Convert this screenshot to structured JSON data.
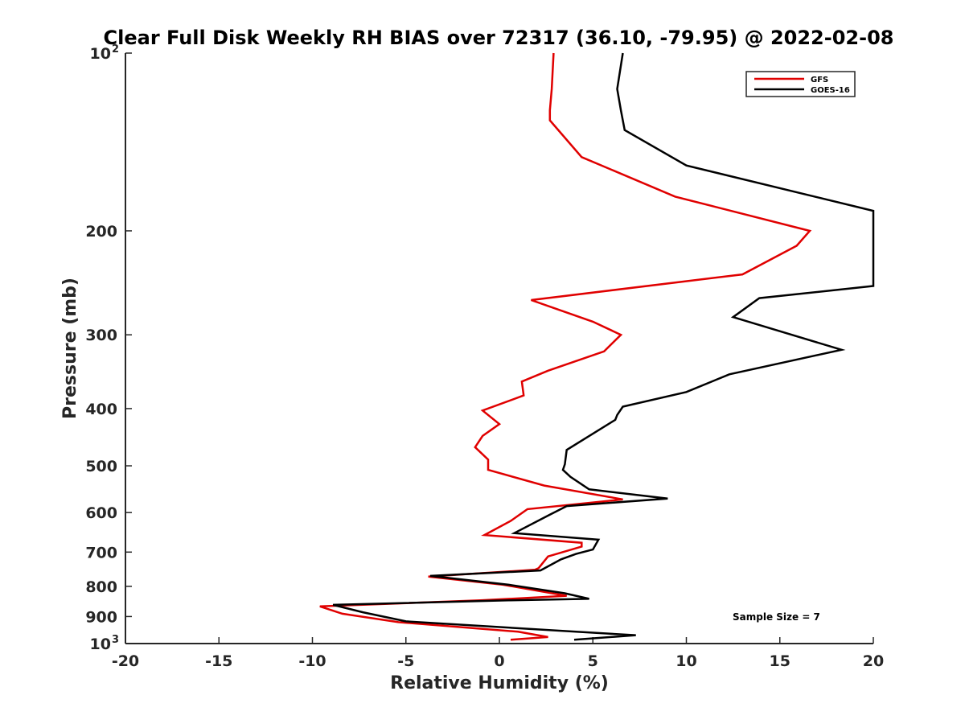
{
  "chart_data": {
    "type": "line",
    "title": "Clear Full Disk Weekly RH BIAS over 72317 (36.10, -79.95) @ 2022-02-08",
    "xlabel": "Relative Humidity (%)",
    "ylabel": "Pressure (mb)",
    "xlim": [
      -20,
      20
    ],
    "ylim": [
      100,
      1000
    ],
    "yscale": "log",
    "y_reversed": true,
    "x_ticks": [
      {
        "value": -20,
        "label": "-20"
      },
      {
        "value": -15,
        "label": "-15"
      },
      {
        "value": -10,
        "label": "-10"
      },
      {
        "value": -5,
        "label": "-5"
      },
      {
        "value": 0,
        "label": "0"
      },
      {
        "value": 5,
        "label": "5"
      },
      {
        "value": 10,
        "label": "10"
      },
      {
        "value": 15,
        "label": "15"
      },
      {
        "value": 20,
        "label": "20"
      }
    ],
    "y_ticks": [
      {
        "value": 100,
        "label": "10",
        "sup": "2"
      },
      {
        "value": 200,
        "label": "200"
      },
      {
        "value": 300,
        "label": "300"
      },
      {
        "value": 400,
        "label": "400"
      },
      {
        "value": 500,
        "label": "500"
      },
      {
        "value": 600,
        "label": "600"
      },
      {
        "value": 700,
        "label": "700"
      },
      {
        "value": 800,
        "label": "800"
      },
      {
        "value": 900,
        "label": "900"
      },
      {
        "value": 1000,
        "label": "10",
        "sup": "3"
      }
    ],
    "grid": false,
    "legend_position": "top-right",
    "annotation": "Sample Size = 7",
    "series": [
      {
        "name": "GFS",
        "color": "#e00000",
        "points": [
          [
            2.9,
            100
          ],
          [
            2.8,
            115
          ],
          [
            2.7,
            125
          ],
          [
            2.7,
            130
          ],
          [
            4.4,
            150
          ],
          [
            9.4,
            175
          ],
          [
            16.6,
            200
          ],
          [
            15.9,
            212
          ],
          [
            13.0,
            237
          ],
          [
            1.7,
            262
          ],
          [
            5.0,
            285
          ],
          [
            6.5,
            300
          ],
          [
            5.6,
            320
          ],
          [
            2.6,
            345
          ],
          [
            1.2,
            360
          ],
          [
            1.3,
            380
          ],
          [
            -0.9,
            403
          ],
          [
            0.0,
            425
          ],
          [
            -0.9,
            445
          ],
          [
            -1.3,
            465
          ],
          [
            -0.6,
            488
          ],
          [
            -0.6,
            508
          ],
          [
            2.4,
            540
          ],
          [
            6.6,
            570
          ],
          [
            1.5,
            592
          ],
          [
            0.6,
            620
          ],
          [
            -0.8,
            655
          ],
          [
            4.4,
            675
          ],
          [
            4.4,
            685
          ],
          [
            2.6,
            712
          ],
          [
            2.1,
            745
          ],
          [
            1.9,
            750
          ],
          [
            -3.8,
            770
          ],
          [
            0.2,
            795
          ],
          [
            3.6,
            830
          ],
          [
            -1.0,
            845
          ],
          [
            -9.6,
            865
          ],
          [
            -8.4,
            890
          ],
          [
            -5.4,
            920
          ],
          [
            1.0,
            955
          ],
          [
            2.6,
            975
          ],
          [
            0.6,
            985
          ]
        ]
      },
      {
        "name": "GOES-16",
        "color": "#000000",
        "points": [
          [
            6.6,
            100
          ],
          [
            6.3,
            115
          ],
          [
            6.5,
            125
          ],
          [
            6.7,
            135
          ],
          [
            10.0,
            155
          ],
          [
            20.0,
            185
          ],
          [
            20.0,
            248
          ],
          [
            13.9,
            260
          ],
          [
            12.5,
            280
          ],
          [
            18.3,
            318
          ],
          [
            12.3,
            350
          ],
          [
            10.0,
            375
          ],
          [
            6.6,
            397
          ],
          [
            6.3,
            410
          ],
          [
            6.2,
            418
          ],
          [
            3.6,
            470
          ],
          [
            3.5,
            497
          ],
          [
            3.4,
            508
          ],
          [
            3.8,
            522
          ],
          [
            4.8,
            548
          ],
          [
            9.0,
            568
          ],
          [
            3.6,
            585
          ],
          [
            2.7,
            605
          ],
          [
            0.8,
            650
          ],
          [
            5.3,
            667
          ],
          [
            5.0,
            693
          ],
          [
            4.1,
            705
          ],
          [
            3.3,
            720
          ],
          [
            2.2,
            752
          ],
          [
            -3.7,
            768
          ],
          [
            0.5,
            795
          ],
          [
            3.5,
            822
          ],
          [
            4.8,
            840
          ],
          [
            0.5,
            845
          ],
          [
            -8.9,
            860
          ],
          [
            -7.3,
            885
          ],
          [
            -5.0,
            917
          ],
          [
            4.1,
            955
          ],
          [
            7.3,
            968
          ],
          [
            4.0,
            985
          ]
        ]
      }
    ]
  }
}
